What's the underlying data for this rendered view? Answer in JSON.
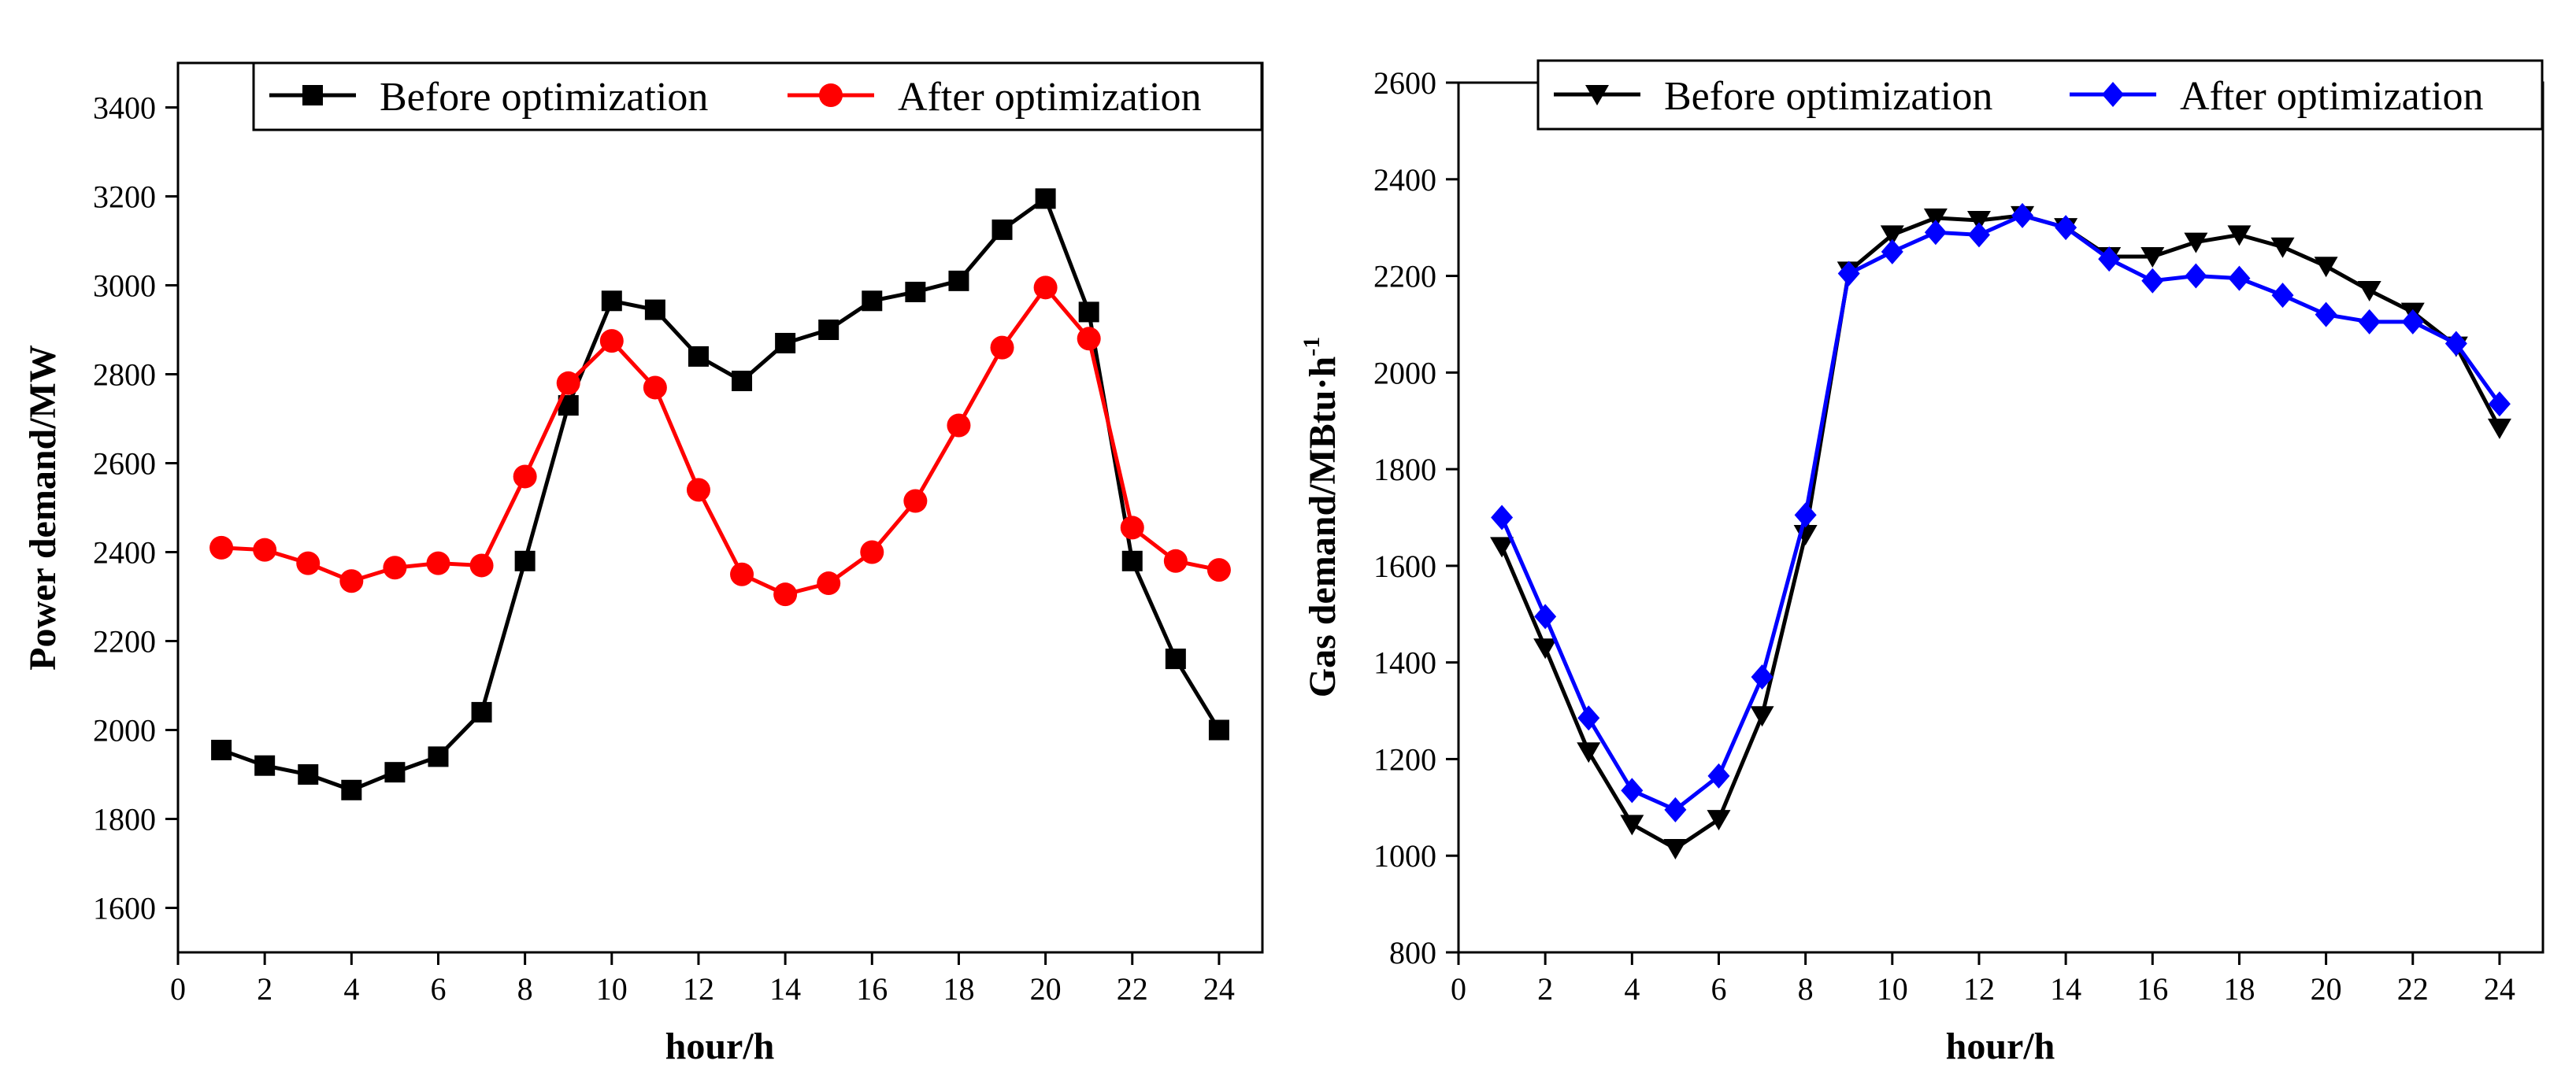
{
  "chart_data": [
    {
      "type": "line",
      "title": "",
      "xlabel": "hour/h",
      "ylabel": "Power demand/MW",
      "xlim": [
        0,
        25
      ],
      "ylim": [
        1500,
        3500
      ],
      "xticks": [
        0,
        2,
        4,
        6,
        8,
        10,
        12,
        14,
        16,
        18,
        20,
        22,
        24
      ],
      "yticks": [
        1600,
        1800,
        2000,
        2200,
        2400,
        2600,
        2800,
        3000,
        3200,
        3400
      ],
      "x": [
        1,
        2,
        3,
        4,
        5,
        6,
        7,
        8,
        9,
        10,
        11,
        12,
        13,
        14,
        15,
        16,
        17,
        18,
        19,
        20,
        21,
        22,
        23,
        24
      ],
      "legend_position": "top",
      "series": [
        {
          "name": "Before optimization",
          "color": "#000000",
          "marker": "square",
          "values": [
            1955,
            1920,
            1900,
            1865,
            1905,
            1940,
            2040,
            2380,
            2730,
            2965,
            2945,
            2840,
            2785,
            2870,
            2900,
            2965,
            2985,
            3010,
            3125,
            3195,
            2940,
            2380,
            2160,
            2000
          ]
        },
        {
          "name": "After optimization",
          "color": "#ff0000",
          "marker": "circle",
          "values": [
            2410,
            2405,
            2375,
            2335,
            2365,
            2375,
            2370,
            2570,
            2780,
            2875,
            2770,
            2540,
            2350,
            2305,
            2330,
            2400,
            2515,
            2685,
            2860,
            2995,
            2880,
            2455,
            2380,
            2360
          ]
        }
      ]
    },
    {
      "type": "line",
      "title": "",
      "xlabel": "hour/h",
      "ylabel": "Gas demand/MBtu·h",
      "ylabel_sup": "-1",
      "xlim": [
        0,
        25
      ],
      "ylim": [
        800,
        2600
      ],
      "xticks": [
        0,
        2,
        4,
        6,
        8,
        10,
        12,
        14,
        16,
        18,
        20,
        22,
        24
      ],
      "yticks": [
        800,
        1000,
        1200,
        1400,
        1600,
        1800,
        2000,
        2200,
        2400,
        2600
      ],
      "x": [
        1,
        2,
        3,
        4,
        5,
        6,
        7,
        8,
        9,
        10,
        11,
        12,
        13,
        14,
        15,
        16,
        17,
        18,
        19,
        20,
        21,
        22,
        23,
        24
      ],
      "legend_position": "top",
      "series": [
        {
          "name": "Before optimization",
          "color": "#000000",
          "marker": "triangle-down",
          "values": [
            1640,
            1430,
            1215,
            1065,
            1015,
            1075,
            1290,
            1665,
            2210,
            2285,
            2320,
            2315,
            2325,
            2300,
            2240,
            2240,
            2270,
            2285,
            2260,
            2220,
            2170,
            2125,
            2055,
            1885
          ]
        },
        {
          "name": "After optimization",
          "color": "#0000ff",
          "marker": "diamond",
          "values": [
            1700,
            1495,
            1285,
            1135,
            1095,
            1165,
            1370,
            1705,
            2205,
            2250,
            2290,
            2285,
            2325,
            2300,
            2235,
            2190,
            2200,
            2195,
            2160,
            2120,
            2105,
            2105,
            2060,
            1935
          ]
        }
      ]
    }
  ]
}
